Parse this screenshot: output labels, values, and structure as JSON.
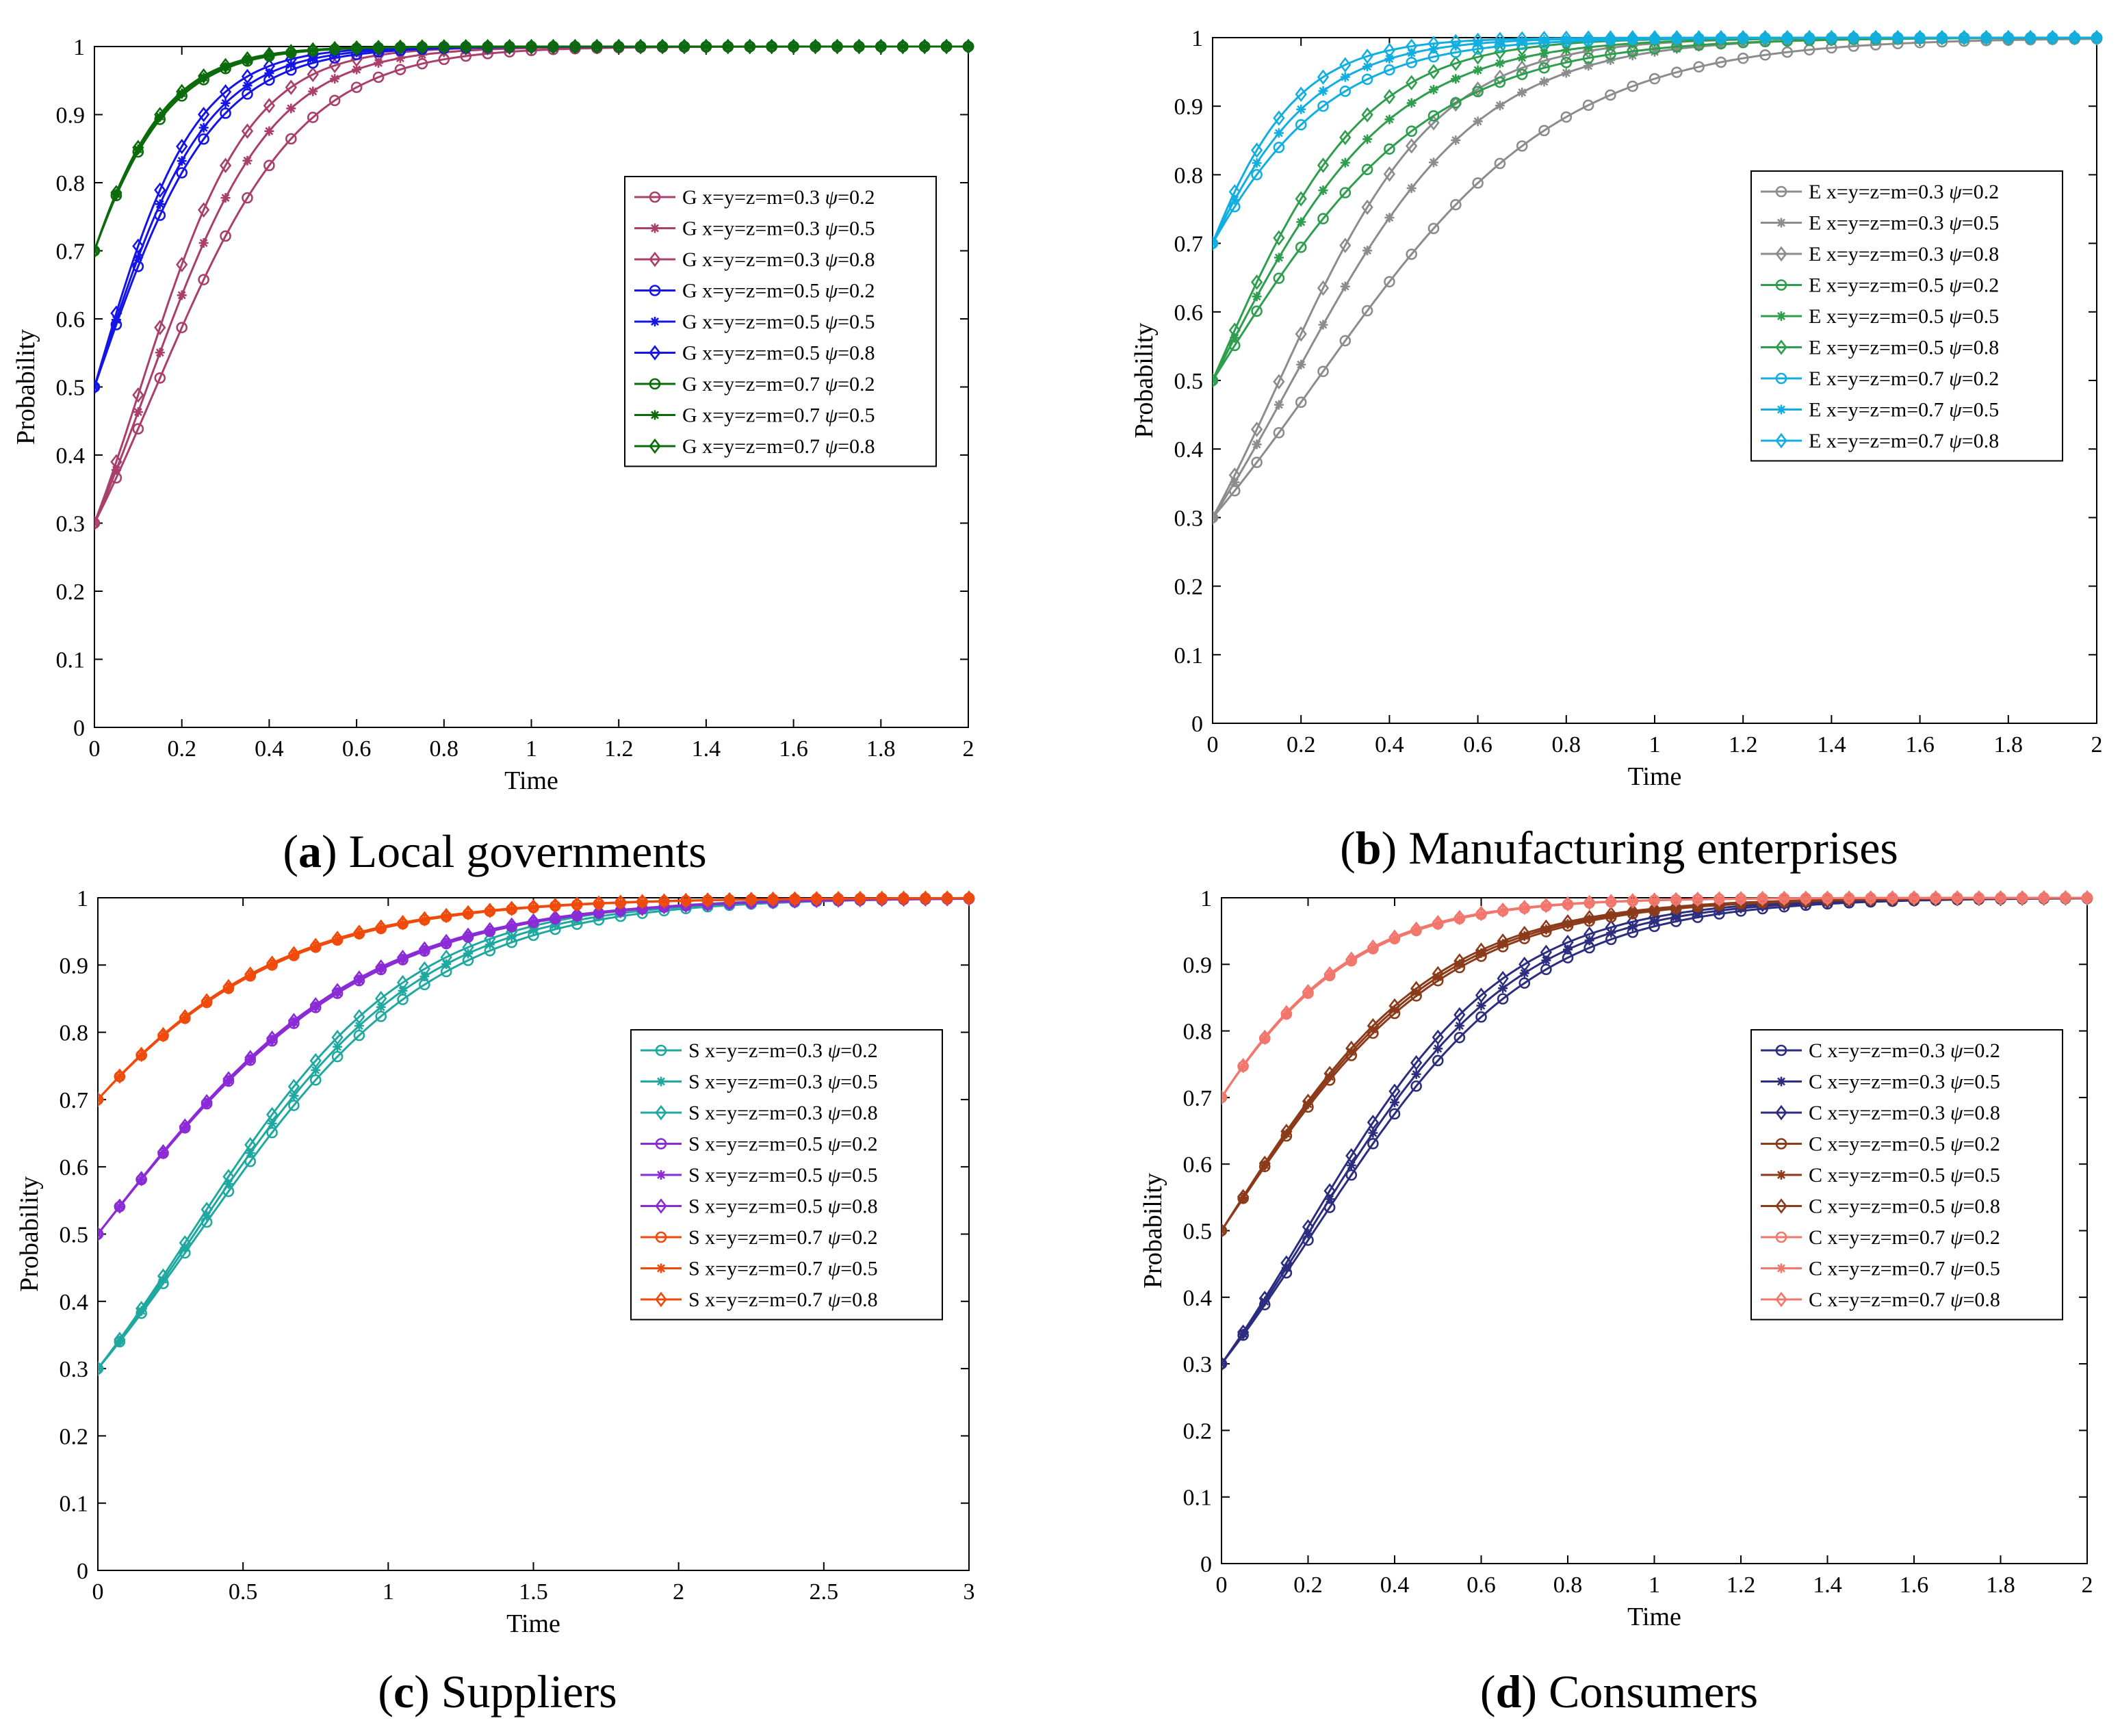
{
  "chart_data": [
    {
      "type": "line",
      "caption_letter": "a",
      "caption_text": "Local governments",
      "xlabel": "Time",
      "ylabel": "Probability",
      "xlim": [
        0,
        2
      ],
      "ylim": [
        0,
        1
      ],
      "xticks": [
        "0",
        "0.2",
        "0.4",
        "0.6",
        "0.8",
        "1",
        "1.2",
        "1.4",
        "1.6",
        "1.8",
        "2"
      ],
      "yticks": [
        "0",
        "0.1",
        "0.2",
        "0.3",
        "0.4",
        "0.5",
        "0.6",
        "0.7",
        "0.8",
        "0.9",
        "1"
      ],
      "legend_position": "center-right",
      "t_max": 2,
      "marker_step": 0.05,
      "series": [
        {
          "name": "G x=y=z=m=0.3 ψ=0.2",
          "label_main": "G x=y=z=m=0.3 ",
          "label_psi": "ψ",
          "label_val": "=0.2",
          "color": "#A93F6B",
          "marker": "circle",
          "initial": 0.3,
          "rate": 6.0
        },
        {
          "name": "G x=y=z=m=0.3 ψ=0.5",
          "label_main": "G x=y=z=m=0.3 ",
          "label_psi": "ψ",
          "label_val": "=0.5",
          "color": "#A93F6B",
          "marker": "star",
          "initial": 0.3,
          "rate": 7.0
        },
        {
          "name": "G x=y=z=m=0.3 ψ=0.8",
          "label_main": "G x=y=z=m=0.3 ",
          "label_psi": "ψ",
          "label_val": "=0.8",
          "color": "#A93F6B",
          "marker": "diamond",
          "initial": 0.3,
          "rate": 8.0
        },
        {
          "name": "G x=y=z=m=0.5 ψ=0.2",
          "label_main": "G x=y=z=m=0.5 ",
          "label_psi": "ψ",
          "label_val": "=0.2",
          "color": "#1414E6",
          "marker": "circle",
          "initial": 0.5,
          "rate": 7.4
        },
        {
          "name": "G x=y=z=m=0.5 ψ=0.5",
          "label_main": "G x=y=z=m=0.5 ",
          "label_psi": "ψ",
          "label_val": "=0.5",
          "color": "#1414E6",
          "marker": "star",
          "initial": 0.5,
          "rate": 8.0
        },
        {
          "name": "G x=y=z=m=0.5 ψ=0.8",
          "label_main": "G x=y=z=m=0.5 ",
          "label_psi": "ψ",
          "label_val": "=0.8",
          "color": "#1414E6",
          "marker": "diamond",
          "initial": 0.5,
          "rate": 8.8
        },
        {
          "name": "G x=y=z=m=0.7 ψ=0.2",
          "label_main": "G x=y=z=m=0.7 ",
          "label_psi": "ψ",
          "label_val": "=0.2",
          "color": "#0B6B0B",
          "marker": "circle",
          "initial": 0.7,
          "rate": 8.5
        },
        {
          "name": "G x=y=z=m=0.7 ψ=0.5",
          "label_main": "G x=y=z=m=0.7 ",
          "label_psi": "ψ",
          "label_val": "=0.5",
          "color": "#0B6B0B",
          "marker": "star",
          "initial": 0.7,
          "rate": 8.8
        },
        {
          "name": "G x=y=z=m=0.7 ψ=0.8",
          "label_main": "G x=y=z=m=0.7 ",
          "label_psi": "ψ",
          "label_val": "=0.8",
          "color": "#0B6B0B",
          "marker": "diamond",
          "initial": 0.7,
          "rate": 9.0
        }
      ]
    },
    {
      "type": "line",
      "caption_letter": "b",
      "caption_text": "Manufacturing enterprises",
      "xlabel": "Time",
      "ylabel": "Probability",
      "xlim": [
        0,
        2
      ],
      "ylim": [
        0,
        1
      ],
      "xticks": [
        "0",
        "0.2",
        "0.4",
        "0.6",
        "0.8",
        "1",
        "1.2",
        "1.4",
        "1.6",
        "1.8",
        "2"
      ],
      "yticks": [
        "0",
        "0.1",
        "0.2",
        "0.3",
        "0.4",
        "0.5",
        "0.6",
        "0.7",
        "0.8",
        "0.9",
        "1"
      ],
      "legend_position": "top-right",
      "t_max": 2,
      "marker_step": 0.05,
      "series": [
        {
          "name": "E x=y=z=m=0.3 ψ=0.2",
          "label_main": "E x=y=z=m=0.3 ",
          "label_psi": "ψ",
          "label_val": "=0.2",
          "color": "#8C8C8C",
          "marker": "circle",
          "initial": 0.3,
          "rate": 3.6
        },
        {
          "name": "E x=y=z=m=0.3 ψ=0.5",
          "label_main": "E x=y=z=m=0.3 ",
          "label_psi": "ψ",
          "label_val": "=0.5",
          "color": "#8C8C8C",
          "marker": "star",
          "initial": 0.3,
          "rate": 4.7
        },
        {
          "name": "E x=y=z=m=0.3 ψ=0.8",
          "label_main": "E x=y=z=m=0.3 ",
          "label_psi": "ψ",
          "label_val": "=0.8",
          "color": "#8C8C8C",
          "marker": "diamond",
          "initial": 0.3,
          "rate": 5.6
        },
        {
          "name": "E x=y=z=m=0.5 ψ=0.2",
          "label_main": "E x=y=z=m=0.5 ",
          "label_psi": "ψ",
          "label_val": "=0.2",
          "color": "#2E9E4E",
          "marker": "circle",
          "initial": 0.5,
          "rate": 4.1
        },
        {
          "name": "E x=y=z=m=0.5 ψ=0.5",
          "label_main": "E x=y=z=m=0.5 ",
          "label_psi": "ψ",
          "label_val": "=0.5",
          "color": "#2E9E4E",
          "marker": "star",
          "initial": 0.5,
          "rate": 5.0
        },
        {
          "name": "E x=y=z=m=0.5 ψ=0.8",
          "label_main": "E x=y=z=m=0.5 ",
          "label_psi": "ψ",
          "label_val": "=0.8",
          "color": "#2E9E4E",
          "marker": "diamond",
          "initial": 0.5,
          "rate": 5.9
        },
        {
          "name": "E x=y=z=m=0.7 ψ=0.2",
          "label_main": "E x=y=z=m=0.7 ",
          "label_psi": "ψ",
          "label_val": "=0.2",
          "color": "#12AEE0",
          "marker": "circle",
          "initial": 0.7,
          "rate": 5.4
        },
        {
          "name": "E x=y=z=m=0.7 ψ=0.5",
          "label_main": "E x=y=z=m=0.7 ",
          "label_psi": "ψ",
          "label_val": "=0.5",
          "color": "#12AEE0",
          "marker": "star",
          "initial": 0.7,
          "rate": 6.5
        },
        {
          "name": "E x=y=z=m=0.7 ψ=0.8",
          "label_main": "E x=y=z=m=0.7 ",
          "label_psi": "ψ",
          "label_val": "=0.8",
          "color": "#12AEE0",
          "marker": "diamond",
          "initial": 0.7,
          "rate": 7.8
        }
      ]
    },
    {
      "type": "line",
      "caption_letter": "c",
      "caption_text": "Suppliers",
      "xlabel": "Time",
      "ylabel": "Probability",
      "xlim": [
        0,
        3
      ],
      "ylim": [
        0,
        1
      ],
      "xticks": [
        "0",
        "0.5",
        "1",
        "1.5",
        "2",
        "2.5",
        "3"
      ],
      "yticks": [
        "0",
        "0.1",
        "0.2",
        "0.3",
        "0.4",
        "0.5",
        "0.6",
        "0.7",
        "0.8",
        "0.9",
        "1"
      ],
      "legend_position": "center-right",
      "t_max": 3,
      "marker_step": 0.075,
      "series": [
        {
          "name": "S x=y=z=m=0.3 ψ=0.2",
          "label_main": "S x=y=z=m=0.3 ",
          "label_psi": "ψ",
          "label_val": "=0.2",
          "color": "#1FA8A0",
          "marker": "circle",
          "initial": 0.3,
          "rate": 2.45
        },
        {
          "name": "S x=y=z=m=0.3 ψ=0.5",
          "label_main": "S x=y=z=m=0.3 ",
          "label_psi": "ψ",
          "label_val": "=0.5",
          "color": "#1FA8A0",
          "marker": "star",
          "initial": 0.3,
          "rate": 2.55
        },
        {
          "name": "S x=y=z=m=0.3 ψ=0.8",
          "label_main": "S x=y=z=m=0.3 ",
          "label_psi": "ψ",
          "label_val": "=0.8",
          "color": "#1FA8A0",
          "marker": "diamond",
          "initial": 0.3,
          "rate": 2.65
        },
        {
          "name": "S x=y=z=m=0.5 ψ=0.2",
          "label_main": "S x=y=z=m=0.5 ",
          "label_psi": "ψ",
          "label_val": "=0.2",
          "color": "#8A2BD6",
          "marker": "circle",
          "initial": 0.5,
          "rate": 2.18
        },
        {
          "name": "S x=y=z=m=0.5 ψ=0.5",
          "label_main": "S x=y=z=m=0.5 ",
          "label_psi": "ψ",
          "label_val": "=0.5",
          "color": "#8A2BD6",
          "marker": "star",
          "initial": 0.5,
          "rate": 2.2
        },
        {
          "name": "S x=y=z=m=0.5 ψ=0.8",
          "label_main": "S x=y=z=m=0.5 ",
          "label_psi": "ψ",
          "label_val": "=0.8",
          "color": "#8A2BD6",
          "marker": "diamond",
          "initial": 0.5,
          "rate": 2.22
        },
        {
          "name": "S x=y=z=m=0.7 ψ=0.2",
          "label_main": "S x=y=z=m=0.7 ",
          "label_psi": "ψ",
          "label_val": "=0.2",
          "color": "#F04A0A",
          "marker": "circle",
          "initial": 0.7,
          "rate": 2.25
        },
        {
          "name": "S x=y=z=m=0.7 ψ=0.5",
          "label_main": "S x=y=z=m=0.7 ",
          "label_psi": "ψ",
          "label_val": "=0.5",
          "color": "#F04A0A",
          "marker": "star",
          "initial": 0.7,
          "rate": 2.27
        },
        {
          "name": "S x=y=z=m=0.7 ψ=0.8",
          "label_main": "S x=y=z=m=0.7 ",
          "label_psi": "ψ",
          "label_val": "=0.8",
          "color": "#F04A0A",
          "marker": "diamond",
          "initial": 0.7,
          "rate": 2.3
        }
      ]
    },
    {
      "type": "line",
      "caption_letter": "d",
      "caption_text": "Consumers",
      "xlabel": "Time",
      "ylabel": "Probability",
      "xlim": [
        0,
        2
      ],
      "ylim": [
        0,
        1
      ],
      "xticks": [
        "0",
        "0.2",
        "0.4",
        "0.6",
        "0.8",
        "1",
        "1.2",
        "1.4",
        "1.6",
        "1.8",
        "2"
      ],
      "yticks": [
        "0",
        "0.1",
        "0.2",
        "0.3",
        "0.4",
        "0.5",
        "0.6",
        "0.7",
        "0.8",
        "0.9",
        "1"
      ],
      "legend_position": "center-right",
      "t_max": 2,
      "marker_step": 0.05,
      "series": [
        {
          "name": "C x=y=z=m=0.3 ψ=0.2",
          "label_main": "C x=y=z=m=0.3 ",
          "label_psi": "ψ",
          "label_val": "=0.2",
          "color": "#2D2D80",
          "marker": "circle",
          "initial": 0.3,
          "rate": 3.95
        },
        {
          "name": "C x=y=z=m=0.3 ψ=0.5",
          "label_main": "C x=y=z=m=0.3 ",
          "label_psi": "ψ",
          "label_val": "=0.5",
          "color": "#2D2D80",
          "marker": "star",
          "initial": 0.3,
          "rate": 4.15
        },
        {
          "name": "C x=y=z=m=0.3 ψ=0.8",
          "label_main": "C x=y=z=m=0.3 ",
          "label_psi": "ψ",
          "label_val": "=0.8",
          "color": "#2D2D80",
          "marker": "diamond",
          "initial": 0.3,
          "rate": 4.35
        },
        {
          "name": "C x=y=z=m=0.5 ψ=0.2",
          "label_main": "C x=y=z=m=0.5 ",
          "label_psi": "ψ",
          "label_val": "=0.2",
          "color": "#8B3A1A",
          "marker": "circle",
          "initial": 0.5,
          "rate": 3.9
        },
        {
          "name": "C x=y=z=m=0.5 ψ=0.5",
          "label_main": "C x=y=z=m=0.5 ",
          "label_psi": "ψ",
          "label_val": "=0.5",
          "color": "#8B3A1A",
          "marker": "star",
          "initial": 0.5,
          "rate": 4.0
        },
        {
          "name": "C x=y=z=m=0.5 ψ=0.8",
          "label_main": "C x=y=z=m=0.5 ",
          "label_psi": "ψ",
          "label_val": "=0.8",
          "color": "#8B3A1A",
          "marker": "diamond",
          "initial": 0.5,
          "rate": 4.1
        },
        {
          "name": "C x=y=z=m=0.7 ψ=0.2",
          "label_main": "C x=y=z=m=0.7 ",
          "label_psi": "ψ",
          "label_val": "=0.2",
          "color": "#F2766C",
          "marker": "circle",
          "initial": 0.7,
          "rate": 4.7
        },
        {
          "name": "C x=y=z=m=0.7 ψ=0.5",
          "label_main": "C x=y=z=m=0.7 ",
          "label_psi": "ψ",
          "label_val": "=0.5",
          "color": "#F2766C",
          "marker": "star",
          "initial": 0.7,
          "rate": 4.75
        },
        {
          "name": "C x=y=z=m=0.7 ψ=0.8",
          "label_main": "C x=y=z=m=0.7 ",
          "label_psi": "ψ",
          "label_val": "=0.8",
          "color": "#F2766C",
          "marker": "diamond",
          "initial": 0.7,
          "rate": 4.8
        }
      ]
    }
  ]
}
